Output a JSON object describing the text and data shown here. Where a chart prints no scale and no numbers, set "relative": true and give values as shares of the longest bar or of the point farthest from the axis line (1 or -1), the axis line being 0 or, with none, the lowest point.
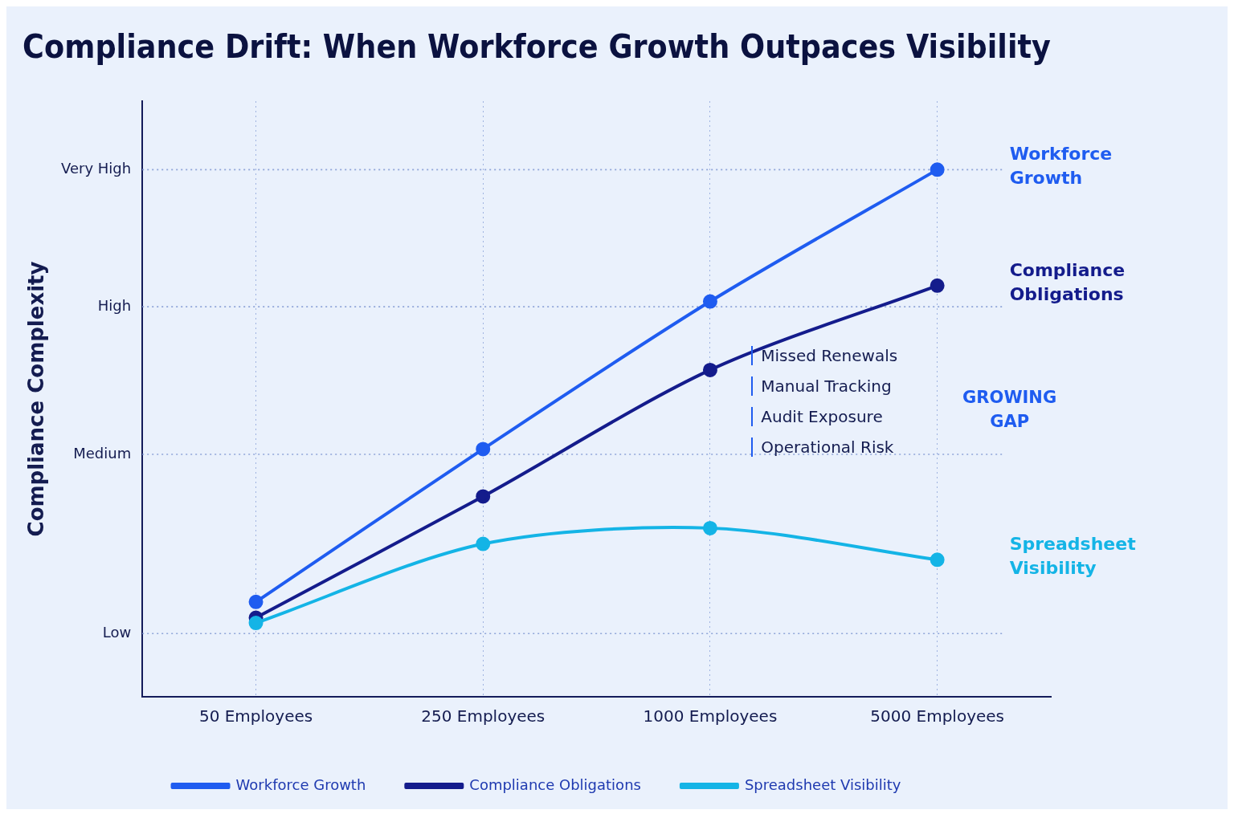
{
  "chart_data": {
    "type": "line",
    "title": "Compliance Drift: When Workforce Growth Outpaces Visibility",
    "ylabel": "Compliance Complexity",
    "categories": [
      "50 Employees",
      "250 Employees",
      "1000 Employees",
      "5000 Employees"
    ],
    "relative": true,
    "series": [
      {
        "name": "Workforce Growth",
        "color": "#1f5cf0",
        "values": [
          0.18,
          0.47,
          0.75,
          1
        ]
      },
      {
        "name": "Compliance Obligations",
        "color": "#141c8c",
        "values": [
          0.15,
          0.38,
          0.62,
          0.78
        ]
      },
      {
        "name": "Spreadsheet Visibility",
        "color": "#14b4e6",
        "values": [
          0.14,
          0.29,
          0.32,
          0.26
        ]
      }
    ],
    "ref_lines": [
      {
        "axis": "y",
        "value": 0.12,
        "label": "Low",
        "line_style": "dotted"
      },
      {
        "axis": "y",
        "value": 0.46,
        "label": "Medium",
        "line_style": "dotted"
      },
      {
        "axis": "y",
        "value": 0.74,
        "label": "High",
        "line_style": "dotted"
      },
      {
        "axis": "y",
        "value": 1,
        "label": "Very High",
        "line_style": "dotted"
      }
    ],
    "grid": "x",
    "legend": "bottom",
    "marker": "circle",
    "line_style": "solid",
    "annotations": [
      "Missed Renewals",
      "Manual Tracking",
      "Audit Exposure",
      "Operational Risk",
      "GROWING GAP"
    ]
  }
}
